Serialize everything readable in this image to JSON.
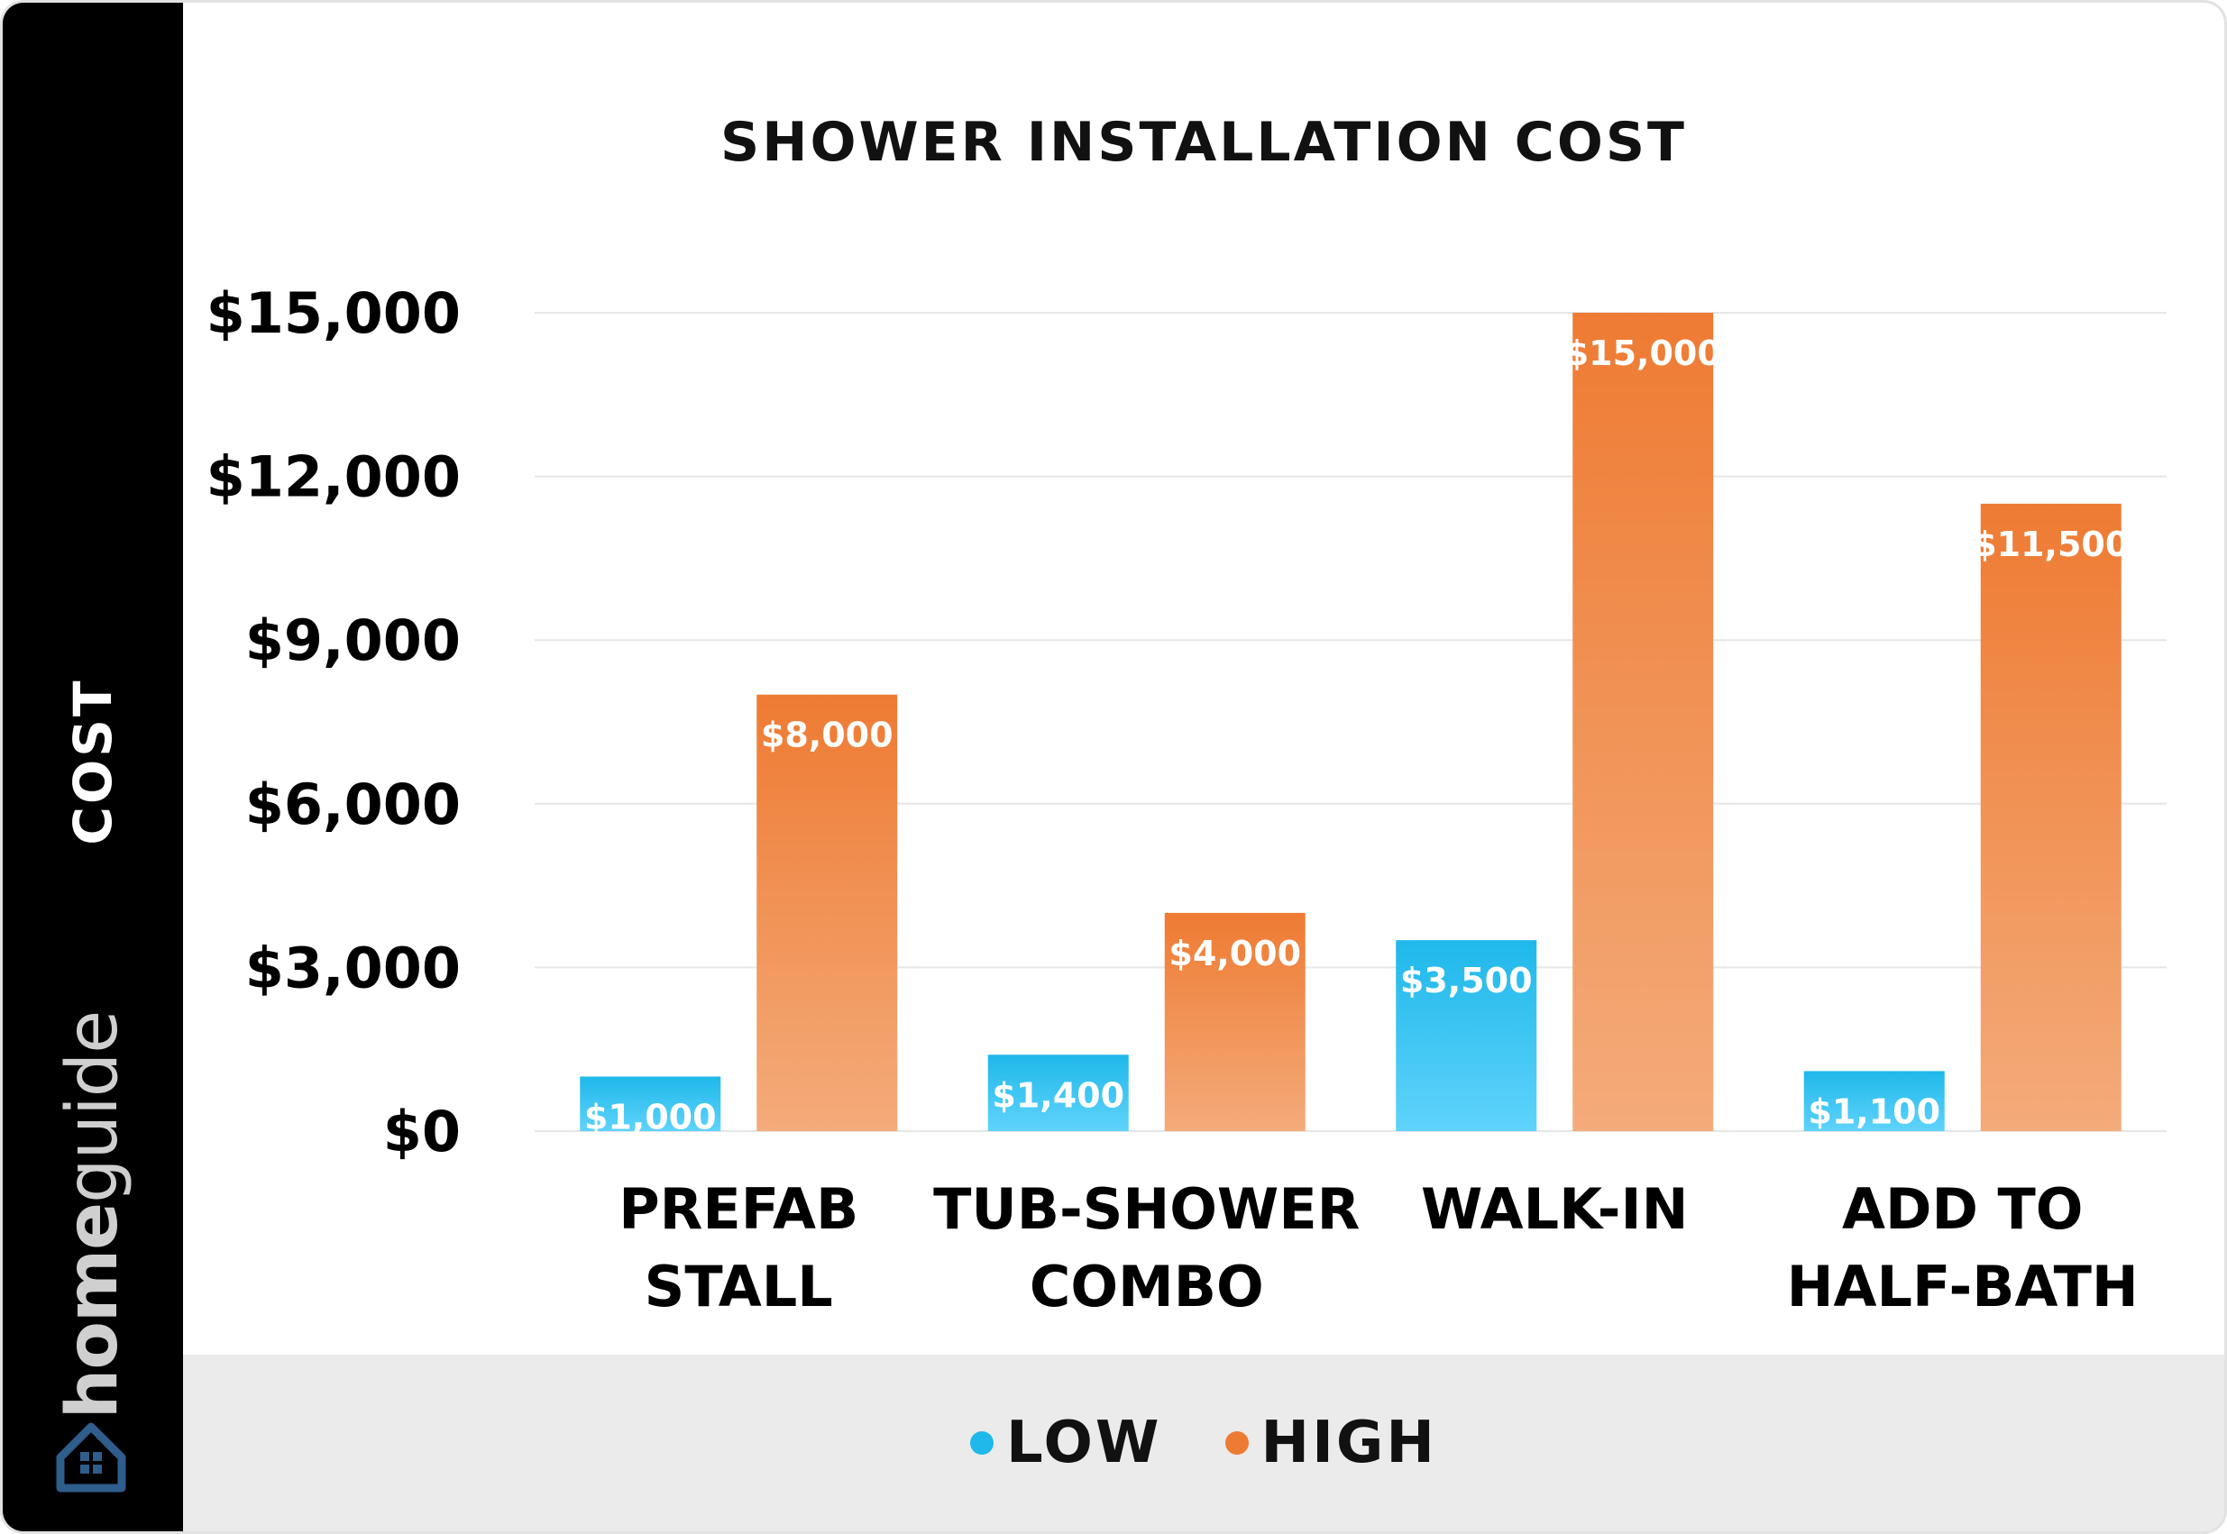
{
  "sidebar": {
    "axis_title": "COST",
    "brand_home": "home",
    "brand_guide": "guide"
  },
  "colors": {
    "low_top": "#1fb8ea",
    "low_bottom": "#5fd3fb",
    "high_top": "#ee7b33",
    "high_bottom": "#f4ab7a",
    "grid": "#e6e6e6",
    "sidebar": "#000000",
    "legend_band": "#ebebeb"
  },
  "chart_data": {
    "type": "bar",
    "title": "SHOWER INSTALLATION COST",
    "ylabel": "COST",
    "xlabel": "",
    "categories": [
      [
        "PREFAB",
        "STALL"
      ],
      [
        "TUB-SHOWER",
        "COMBO"
      ],
      [
        "WALK-IN"
      ],
      [
        "ADD TO",
        "HALF-BATH"
      ]
    ],
    "series": [
      {
        "name": "LOW",
        "values": [
          1000,
          1400,
          3500,
          1100
        ],
        "labels": [
          "$1,000",
          "$1,400",
          "$3,500",
          "$1,100"
        ]
      },
      {
        "name": "HIGH",
        "values": [
          8000,
          4000,
          15000,
          11500
        ],
        "labels": [
          "$8,000",
          "$4,000",
          "$15,000",
          "$11,500"
        ]
      }
    ],
    "ylim": [
      0,
      15000
    ],
    "yticks": [
      0,
      3000,
      6000,
      9000,
      12000,
      15000
    ],
    "ytick_labels": [
      "$0",
      "$3,000",
      "$6,000",
      "$9,000",
      "$12,000",
      "$15,000"
    ],
    "grid": true,
    "legend": "bottom"
  }
}
